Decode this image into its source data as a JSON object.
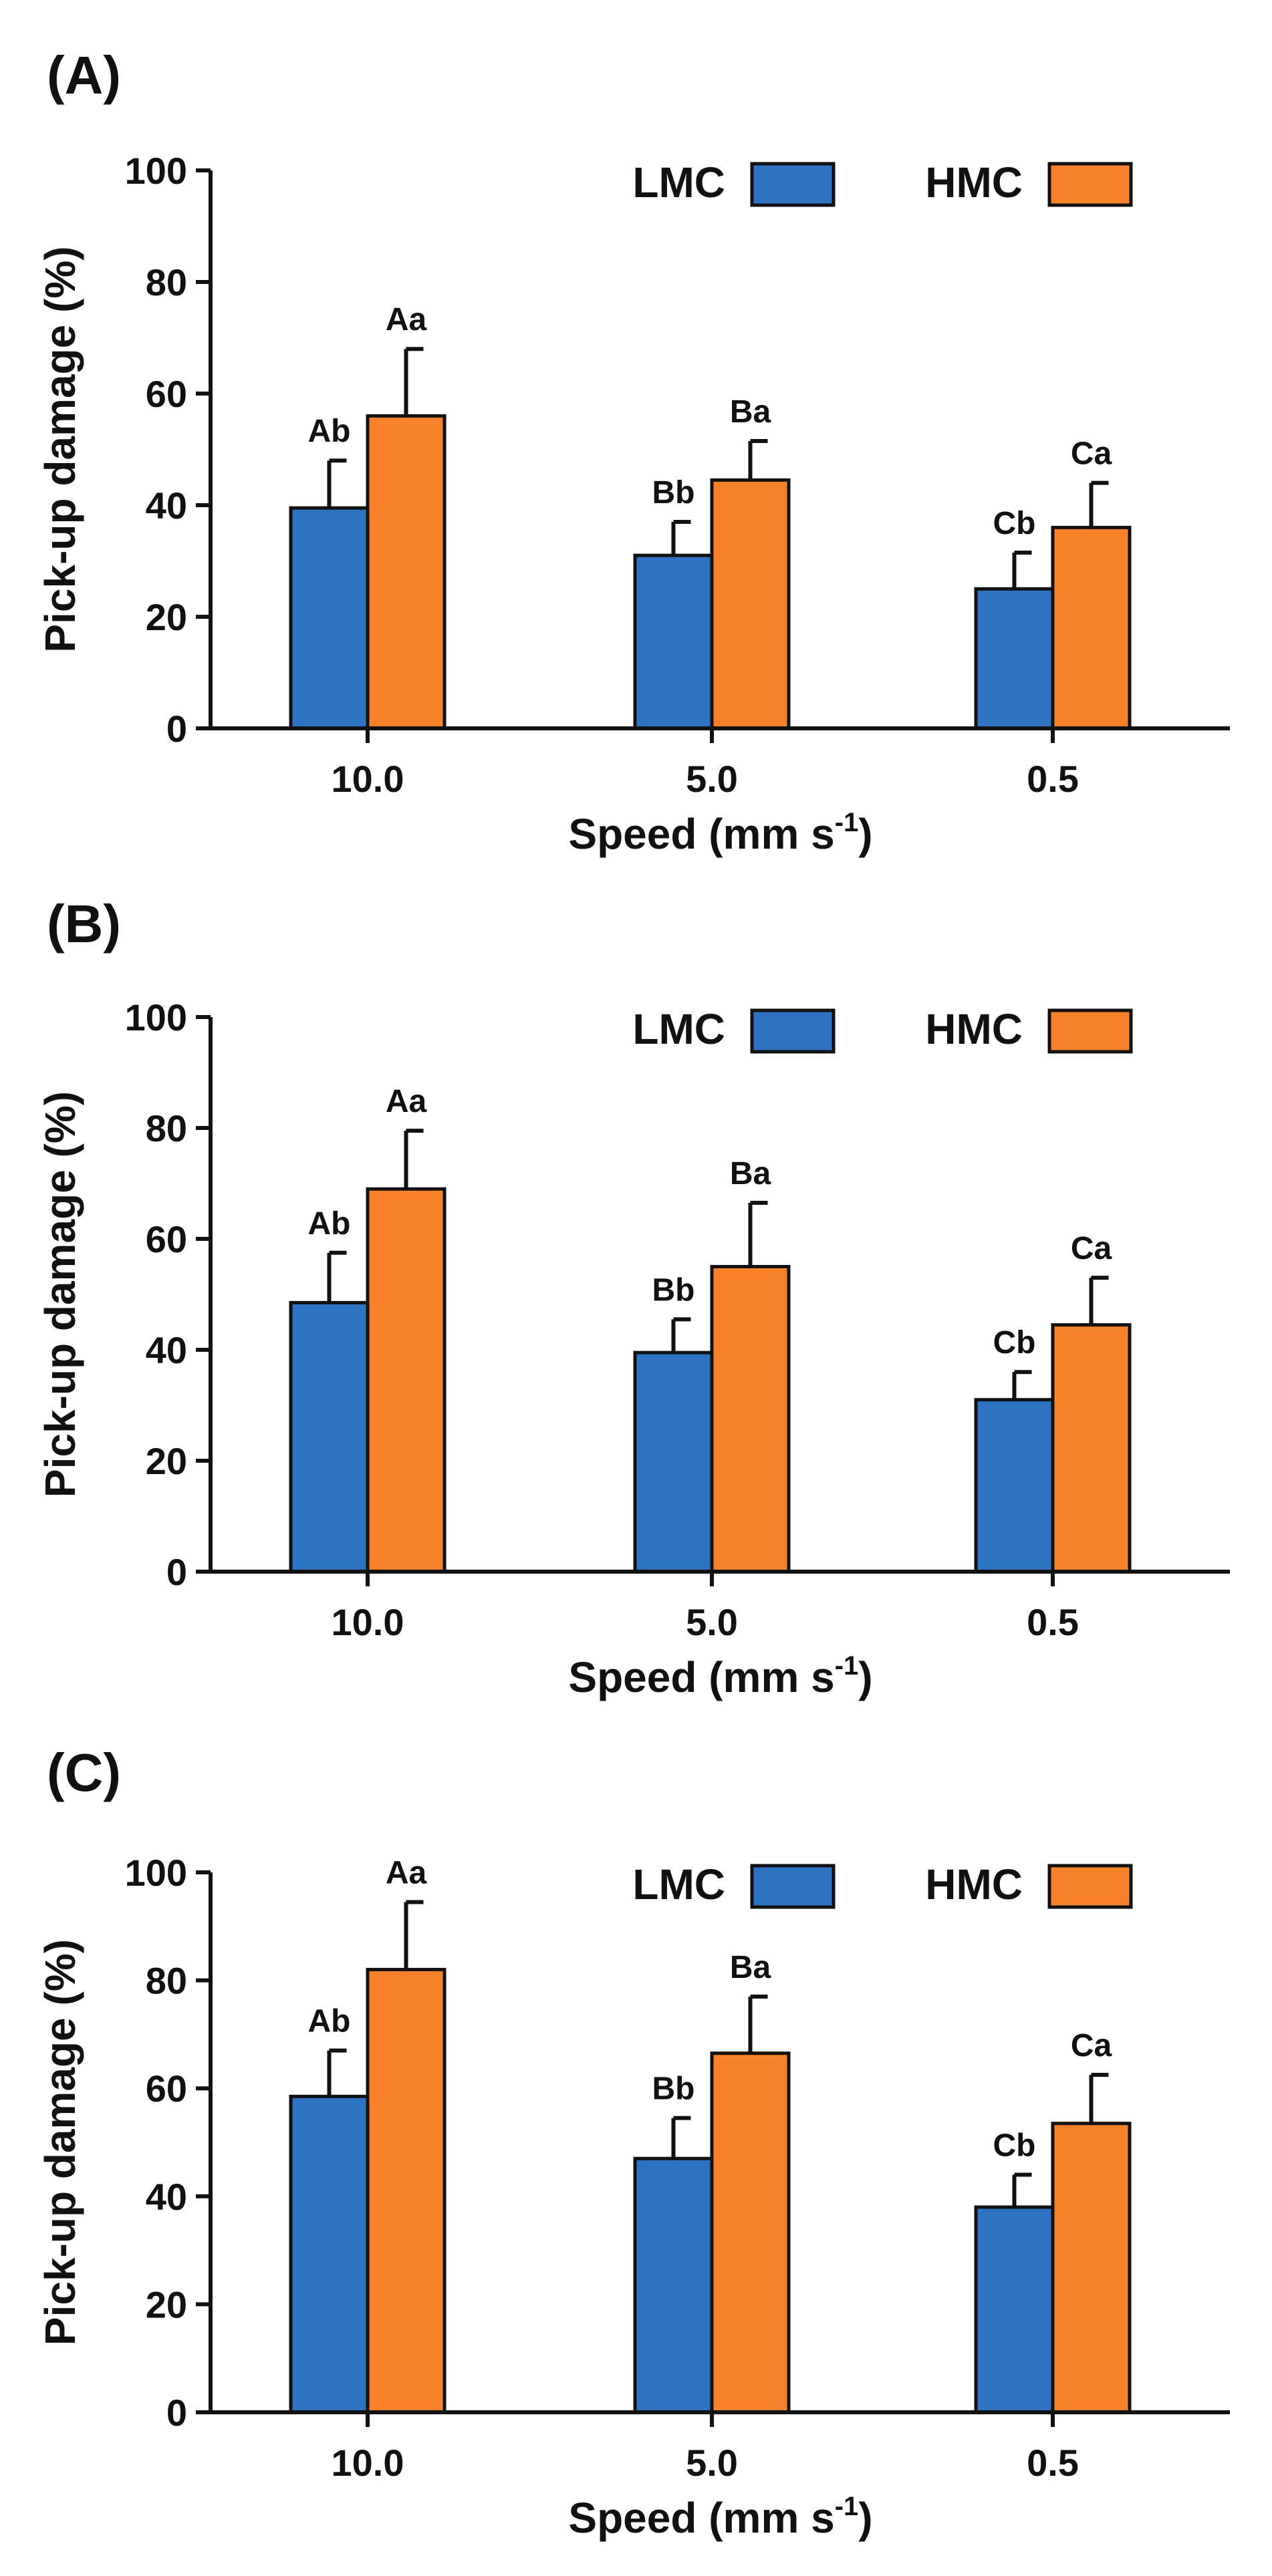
{
  "colors": {
    "LMC": "#2e73c2",
    "HMC": "#f7822a",
    "axis": "#111111"
  },
  "legend": {
    "items": [
      {
        "name": "LMC"
      },
      {
        "name": "HMC"
      }
    ]
  },
  "axis_labels": {
    "ylabel": "Pick-up damage (%)",
    "xlabel_main": "Speed (mm s",
    "xlabel_sup": "-1",
    "xlabel_end": ")"
  },
  "chart_data": [
    {
      "type": "bar",
      "panel_label": "(A)",
      "categories": [
        "10.0",
        "5.0",
        "0.5"
      ],
      "ylim": [
        0,
        100
      ],
      "yticks": [
        0,
        20,
        40,
        60,
        80,
        100
      ],
      "series": [
        {
          "name": "LMC",
          "values": [
            39.5,
            31,
            25
          ],
          "errors": [
            8.5,
            6,
            6.5
          ],
          "labels": [
            "Ab",
            "Bb",
            "Cb"
          ]
        },
        {
          "name": "HMC",
          "values": [
            56,
            44.5,
            36
          ],
          "errors": [
            12,
            7,
            8
          ],
          "labels": [
            "Aa",
            "Ba",
            "Ca"
          ]
        }
      ]
    },
    {
      "type": "bar",
      "panel_label": "(B)",
      "categories": [
        "10.0",
        "5.0",
        "0.5"
      ],
      "ylim": [
        0,
        100
      ],
      "yticks": [
        0,
        20,
        40,
        60,
        80,
        100
      ],
      "series": [
        {
          "name": "LMC",
          "values": [
            48.5,
            39.5,
            31
          ],
          "errors": [
            9,
            6,
            5
          ],
          "labels": [
            "Ab",
            "Bb",
            "Cb"
          ]
        },
        {
          "name": "HMC",
          "values": [
            69,
            55,
            44.5
          ],
          "errors": [
            10.5,
            11.5,
            8.5
          ],
          "labels": [
            "Aa",
            "Ba",
            "Ca"
          ]
        }
      ]
    },
    {
      "type": "bar",
      "panel_label": "(C)",
      "categories": [
        "10.0",
        "5.0",
        "0.5"
      ],
      "ylim": [
        0,
        100
      ],
      "yticks": [
        0,
        20,
        40,
        60,
        80,
        100
      ],
      "series": [
        {
          "name": "LMC",
          "values": [
            58.5,
            47,
            38
          ],
          "errors": [
            8.5,
            7.5,
            6
          ],
          "labels": [
            "Ab",
            "Bb",
            "Cb"
          ]
        },
        {
          "name": "HMC",
          "values": [
            82,
            66.5,
            53.5
          ],
          "errors": [
            12.5,
            10.5,
            9
          ],
          "labels": [
            "Aa",
            "Ba",
            "Ca"
          ]
        }
      ]
    }
  ]
}
